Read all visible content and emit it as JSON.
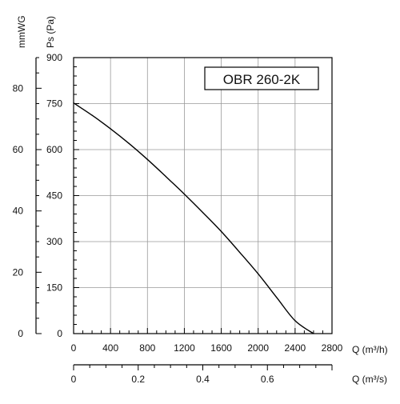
{
  "chart_data": {
    "type": "line",
    "title": "OBR 260-2K",
    "ylabel_pa": "Ps (Pa)",
    "ylabel_mmwg": "mmWG",
    "xlabel_m3h": "Q (m³/h)",
    "xlabel_m3s": "Q (m³/s)",
    "xlim_m3h": [
      0,
      2800
    ],
    "ylim_pa": [
      0,
      900
    ],
    "ylim_mmwg": [
      0,
      90
    ],
    "xlim_m3s": [
      0,
      0.8
    ],
    "x_ticks_m3h": [
      "0",
      "400",
      "800",
      "1200",
      "1600",
      "2000",
      "2400",
      "2800"
    ],
    "x_ticks_m3s": [
      "0",
      "0.2",
      "0.4",
      "0.6"
    ],
    "y_ticks_pa": [
      "0",
      "150",
      "300",
      "450",
      "600",
      "750",
      "900"
    ],
    "y_ticks_mmwg": [
      "0",
      "20",
      "40",
      "60",
      "80"
    ],
    "grid": true,
    "series": [
      {
        "color": "#000000",
        "x": [
          0,
          200,
          400,
          600,
          800,
          1000,
          1200,
          1400,
          1600,
          1800,
          2000,
          2200,
          2400,
          2600
        ],
        "y": [
          752,
          712,
          668,
          620,
          568,
          512,
          455,
          395,
          333,
          265,
          195,
          118,
          42,
          0
        ]
      }
    ]
  }
}
